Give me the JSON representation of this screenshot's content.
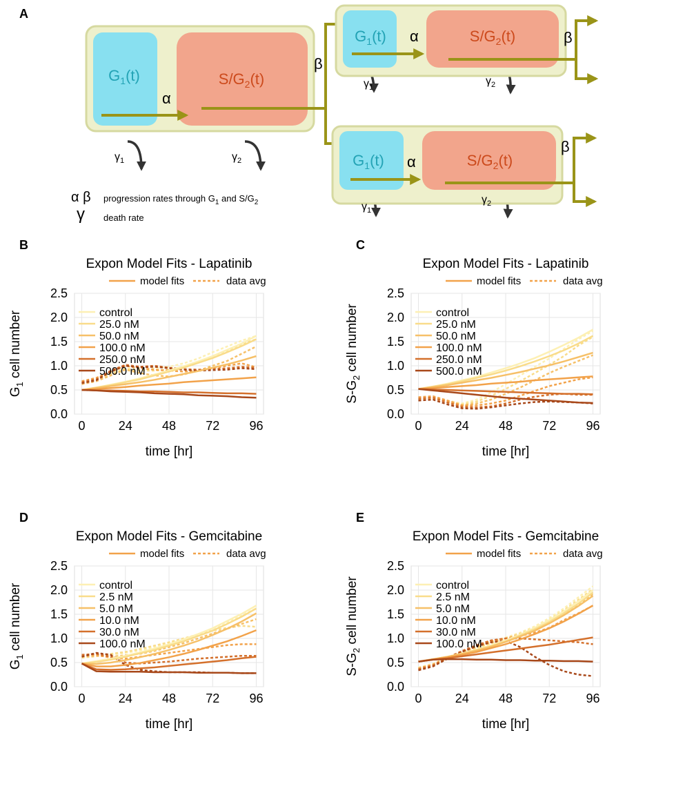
{
  "diagram": {
    "panel": "A",
    "g1": {
      "main": "G",
      "sub": "1",
      "tail": "(t)"
    },
    "sg2": {
      "main": "S/G",
      "sub": "2",
      "tail": "(t)"
    },
    "alpha": "α",
    "beta": "β",
    "gamma1": {
      "main": "γ",
      "sub": "1"
    },
    "gamma2": {
      "main": "γ",
      "sub": "2"
    },
    "legend": {
      "rates_symbols": "α β",
      "rates_text": {
        "main": "progression rates through G",
        "sub": "1",
        "mid": " and S/G",
        "sub2": "2"
      },
      "death_symbol": "γ",
      "death_text": "death rate"
    }
  },
  "chart_data": [
    {
      "type": "line",
      "panel": "B",
      "title": "Expon Model Fits - Lapatinib",
      "style_legend": [
        "model fits",
        "data avg"
      ],
      "x_label": "time [hr]",
      "y_label": {
        "main": "G",
        "sub": "1",
        "tail": " cell number"
      },
      "x": [
        0,
        8,
        16,
        24,
        32,
        40,
        48,
        56,
        64,
        72,
        80,
        88,
        96
      ],
      "xlim": [
        -4,
        100
      ],
      "xticks": [
        0,
        24,
        48,
        72,
        96
      ],
      "ylim": [
        0,
        2.5
      ],
      "yticks": [
        {
          "value": 0,
          "label": "0.0"
        },
        0.5,
        {
          "value": 1,
          "label": "1.0"
        },
        1.5,
        {
          "value": 2,
          "label": "2.0"
        },
        2.5
      ],
      "grid": true,
      "series": [
        {
          "name": "control",
          "color": "#fdf0b4",
          "fit": [
            0.5,
            0.55,
            0.61,
            0.67,
            0.74,
            0.82,
            0.9,
            0.99,
            1.09,
            1.2,
            1.33,
            1.46,
            1.62
          ],
          "data": [
            0.65,
            0.72,
            0.85,
            0.95,
            0.92,
            0.95,
            0.98,
            1.05,
            1.15,
            1.28,
            1.4,
            1.52,
            1.62
          ]
        },
        {
          "name": "25.0 nM",
          "color": "#f9dc8a",
          "fit": [
            0.5,
            0.55,
            0.6,
            0.66,
            0.72,
            0.8,
            0.88,
            0.96,
            1.06,
            1.16,
            1.28,
            1.41,
            1.55
          ],
          "data": [
            0.63,
            0.7,
            0.82,
            0.93,
            0.9,
            0.9,
            0.92,
            0.98,
            1.08,
            1.2,
            1.32,
            1.45,
            1.55
          ]
        },
        {
          "name": "50.0 nM",
          "color": "#f6c068",
          "fit": [
            0.5,
            0.54,
            0.58,
            0.62,
            0.66,
            0.71,
            0.77,
            0.83,
            0.89,
            0.96,
            1.03,
            1.11,
            1.2
          ],
          "data": [
            0.62,
            0.68,
            0.8,
            0.92,
            0.85,
            0.8,
            0.78,
            0.82,
            0.9,
            1.0,
            1.1,
            1.25,
            1.4
          ]
        },
        {
          "name": "100.0 nM",
          "color": "#f2a24a",
          "fit": [
            0.5,
            0.52,
            0.54,
            0.56,
            0.59,
            0.61,
            0.63,
            0.66,
            0.68,
            0.7,
            0.72,
            0.74,
            0.76
          ],
          "data": [
            0.68,
            0.75,
            0.88,
            1.0,
            0.95,
            0.92,
            0.9,
            0.88,
            0.9,
            0.95,
            1.0,
            1.05,
            0.97
          ]
        },
        {
          "name": "250.0 nM",
          "color": "#d4702c",
          "fit": [
            0.5,
            0.49,
            0.49,
            0.48,
            0.47,
            0.47,
            0.46,
            0.45,
            0.45,
            0.44,
            0.43,
            0.43,
            0.42
          ],
          "data": [
            0.66,
            0.72,
            0.9,
            1.02,
            0.98,
            1.0,
            0.96,
            0.93,
            0.92,
            0.93,
            0.95,
            0.98,
            0.96
          ]
        },
        {
          "name": "500.0 nM",
          "color": "#a8481a",
          "fit": [
            0.5,
            0.49,
            0.47,
            0.46,
            0.45,
            0.43,
            0.42,
            0.41,
            0.39,
            0.38,
            0.37,
            0.35,
            0.34
          ],
          "data": [
            0.64,
            0.7,
            0.88,
            1.0,
            0.97,
            0.98,
            0.95,
            0.92,
            0.9,
            0.91,
            0.92,
            0.95,
            0.93
          ]
        }
      ]
    },
    {
      "type": "line",
      "panel": "C",
      "title": "Expon Model Fits - Lapatinib",
      "style_legend": [
        "model fits",
        "data avg"
      ],
      "x_label": "time [hr]",
      "y_label": {
        "main": "S-G",
        "sub": "2",
        "tail": " cell number"
      },
      "x": [
        0,
        8,
        16,
        24,
        32,
        40,
        48,
        56,
        64,
        72,
        80,
        88,
        96
      ],
      "xlim": [
        -4,
        100
      ],
      "xticks": [
        0,
        24,
        48,
        72,
        96
      ],
      "ylim": [
        0,
        2.5
      ],
      "yticks": [
        {
          "value": 0,
          "label": "0.0"
        },
        0.5,
        {
          "value": 1,
          "label": "1.0"
        },
        1.5,
        {
          "value": 2,
          "label": "2.0"
        },
        2.5
      ],
      "grid": true,
      "series": [
        {
          "name": "control",
          "color": "#fdf0b4",
          "fit": [
            0.52,
            0.57,
            0.63,
            0.7,
            0.77,
            0.86,
            0.95,
            1.05,
            1.16,
            1.29,
            1.43,
            1.58,
            1.75
          ],
          "data": [
            0.33,
            0.35,
            0.28,
            0.22,
            0.3,
            0.45,
            0.62,
            0.8,
            0.98,
            1.15,
            1.35,
            1.55,
            1.72
          ]
        },
        {
          "name": "25.0 nM",
          "color": "#f9dc8a",
          "fit": [
            0.52,
            0.57,
            0.62,
            0.68,
            0.75,
            0.82,
            0.9,
            0.99,
            1.09,
            1.2,
            1.32,
            1.46,
            1.62
          ],
          "data": [
            0.32,
            0.34,
            0.27,
            0.2,
            0.26,
            0.38,
            0.52,
            0.68,
            0.85,
            1.02,
            1.2,
            1.42,
            1.6
          ]
        },
        {
          "name": "50.0 nM",
          "color": "#f6c068",
          "fit": [
            0.52,
            0.56,
            0.6,
            0.65,
            0.7,
            0.75,
            0.81,
            0.87,
            0.94,
            1.01,
            1.09,
            1.18,
            1.27
          ],
          "data": [
            0.3,
            0.33,
            0.25,
            0.18,
            0.22,
            0.3,
            0.42,
            0.55,
            0.7,
            0.85,
            0.98,
            1.1,
            1.22
          ]
        },
        {
          "name": "100.0 nM",
          "color": "#f2a24a",
          "fit": [
            0.52,
            0.54,
            0.56,
            0.58,
            0.6,
            0.63,
            0.65,
            0.67,
            0.7,
            0.72,
            0.74,
            0.76,
            0.78
          ],
          "data": [
            0.35,
            0.37,
            0.28,
            0.18,
            0.18,
            0.22,
            0.28,
            0.38,
            0.48,
            0.58,
            0.65,
            0.72,
            0.76
          ]
        },
        {
          "name": "250.0 nM",
          "color": "#d4702c",
          "fit": [
            0.52,
            0.51,
            0.5,
            0.49,
            0.48,
            0.47,
            0.46,
            0.45,
            0.44,
            0.43,
            0.42,
            0.42,
            0.41
          ],
          "data": [
            0.32,
            0.34,
            0.24,
            0.15,
            0.14,
            0.16,
            0.22,
            0.3,
            0.36,
            0.4,
            0.42,
            0.4,
            0.4
          ]
        },
        {
          "name": "500.0 nM",
          "color": "#a8481a",
          "fit": [
            0.52,
            0.49,
            0.46,
            0.43,
            0.4,
            0.37,
            0.34,
            0.32,
            0.3,
            0.28,
            0.26,
            0.24,
            0.23
          ],
          "data": [
            0.28,
            0.3,
            0.2,
            0.12,
            0.11,
            0.14,
            0.18,
            0.22,
            0.25,
            0.26,
            0.25,
            0.24,
            0.22
          ]
        }
      ]
    },
    {
      "type": "line",
      "panel": "D",
      "title": "Expon Model Fits - Gemcitabine",
      "style_legend": [
        "model fits",
        "data avg"
      ],
      "x_label": "time [hr]",
      "y_label": {
        "main": "G",
        "sub": "1",
        "tail": " cell number"
      },
      "x": [
        0,
        8,
        16,
        24,
        32,
        40,
        48,
        56,
        64,
        72,
        80,
        88,
        96
      ],
      "xlim": [
        -4,
        100
      ],
      "xticks": [
        0,
        24,
        48,
        72,
        96
      ],
      "ylim": [
        0,
        2.5
      ],
      "yticks": [
        {
          "value": 0,
          "label": "0.0"
        },
        0.5,
        {
          "value": 1,
          "label": "1.0"
        },
        1.5,
        {
          "value": 2,
          "label": "2.0"
        },
        2.5
      ],
      "grid": true,
      "series": [
        {
          "name": "control",
          "color": "#fdf0b4",
          "fit": [
            0.48,
            0.53,
            0.58,
            0.64,
            0.71,
            0.79,
            0.88,
            0.98,
            1.09,
            1.21,
            1.36,
            1.51,
            1.68
          ],
          "data": [
            0.63,
            0.65,
            0.66,
            0.7,
            0.75,
            0.82,
            0.9,
            0.98,
            1.08,
            1.2,
            1.34,
            1.48,
            1.62
          ]
        },
        {
          "name": "2.5 nM",
          "color": "#f9dc8a",
          "fit": [
            0.48,
            0.51,
            0.56,
            0.62,
            0.69,
            0.76,
            0.85,
            0.94,
            1.05,
            1.16,
            1.3,
            1.45,
            1.62
          ],
          "data": [
            0.6,
            0.63,
            0.68,
            0.72,
            0.78,
            0.85,
            0.92,
            1.0,
            1.08,
            1.16,
            1.22,
            1.26,
            1.24
          ]
        },
        {
          "name": "5.0 nM",
          "color": "#f6c068",
          "fit": [
            0.48,
            0.47,
            0.5,
            0.55,
            0.61,
            0.68,
            0.76,
            0.85,
            0.95,
            1.07,
            1.2,
            1.35,
            1.52
          ],
          "data": [
            0.62,
            0.64,
            0.62,
            0.65,
            0.68,
            0.74,
            0.82,
            0.9,
            1.0,
            1.1,
            1.2,
            1.3,
            1.4
          ]
        },
        {
          "name": "10.0 nM",
          "color": "#f2a24a",
          "fit": [
            0.48,
            0.42,
            0.42,
            0.45,
            0.49,
            0.55,
            0.61,
            0.68,
            0.76,
            0.85,
            0.94,
            1.05,
            1.17
          ],
          "data": [
            0.64,
            0.66,
            0.6,
            0.58,
            0.62,
            0.66,
            0.7,
            0.74,
            0.78,
            0.82,
            0.86,
            0.88,
            0.88
          ]
        },
        {
          "name": "30.0 nM",
          "color": "#d4702c",
          "fit": [
            0.48,
            0.36,
            0.35,
            0.36,
            0.38,
            0.4,
            0.43,
            0.46,
            0.49,
            0.52,
            0.55,
            0.59,
            0.62
          ],
          "data": [
            0.66,
            0.68,
            0.62,
            0.5,
            0.48,
            0.5,
            0.52,
            0.55,
            0.58,
            0.6,
            0.62,
            0.64,
            0.64
          ]
        },
        {
          "name": "100.0 nM",
          "color": "#a8481a",
          "fit": [
            0.48,
            0.32,
            0.31,
            0.31,
            0.31,
            0.3,
            0.3,
            0.3,
            0.29,
            0.29,
            0.29,
            0.28,
            0.28
          ],
          "data": [
            0.62,
            0.7,
            0.66,
            0.45,
            0.35,
            0.32,
            0.3,
            0.3,
            0.3,
            0.29,
            0.29,
            0.28,
            0.28
          ]
        }
      ]
    },
    {
      "type": "line",
      "panel": "E",
      "title": "Expon Model Fits - Gemcitabine",
      "style_legend": [
        "model fits",
        "data avg"
      ],
      "x_label": "time [hr]",
      "y_label": {
        "main": "S-G",
        "sub": "2",
        "tail": " cell number"
      },
      "x": [
        0,
        8,
        16,
        24,
        32,
        40,
        48,
        56,
        64,
        72,
        80,
        88,
        96
      ],
      "xlim": [
        -4,
        100
      ],
      "xticks": [
        0,
        24,
        48,
        72,
        96
      ],
      "ylim": [
        0,
        2.5
      ],
      "yticks": [
        {
          "value": 0,
          "label": "0.0"
        },
        0.5,
        {
          "value": 1,
          "label": "1.0"
        },
        1.5,
        {
          "value": 2,
          "label": "2.0"
        },
        2.5
      ],
      "grid": true,
      "series": [
        {
          "name": "control",
          "color": "#fdf0b4",
          "fit": [
            0.52,
            0.57,
            0.62,
            0.69,
            0.77,
            0.86,
            0.96,
            1.08,
            1.22,
            1.38,
            1.56,
            1.77,
            2.0
          ],
          "data": [
            0.4,
            0.48,
            0.6,
            0.72,
            0.82,
            0.92,
            1.02,
            1.12,
            1.25,
            1.42,
            1.62,
            1.85,
            2.08
          ]
        },
        {
          "name": "2.5 nM",
          "color": "#f9dc8a",
          "fit": [
            0.52,
            0.57,
            0.62,
            0.68,
            0.76,
            0.84,
            0.94,
            1.06,
            1.19,
            1.34,
            1.52,
            1.72,
            1.95
          ],
          "data": [
            0.38,
            0.46,
            0.58,
            0.7,
            0.8,
            0.9,
            1.0,
            1.1,
            1.22,
            1.38,
            1.58,
            1.8,
            2.02
          ]
        },
        {
          "name": "5.0 nM",
          "color": "#f6c068",
          "fit": [
            0.52,
            0.57,
            0.62,
            0.68,
            0.75,
            0.83,
            0.93,
            1.04,
            1.16,
            1.31,
            1.48,
            1.67,
            1.88
          ],
          "data": [
            0.37,
            0.45,
            0.58,
            0.7,
            0.82,
            0.92,
            1.0,
            1.08,
            1.18,
            1.32,
            1.5,
            1.7,
            1.92
          ]
        },
        {
          "name": "10.0 nM",
          "color": "#f2a24a",
          "fit": [
            0.52,
            0.56,
            0.61,
            0.66,
            0.72,
            0.8,
            0.88,
            0.98,
            1.09,
            1.21,
            1.35,
            1.51,
            1.68
          ],
          "data": [
            0.38,
            0.46,
            0.6,
            0.72,
            0.85,
            0.95,
            1.0,
            1.05,
            1.12,
            1.22,
            1.38,
            1.52,
            1.68
          ]
        },
        {
          "name": "30.0 nM",
          "color": "#d4702c",
          "fit": [
            0.52,
            0.56,
            0.59,
            0.63,
            0.67,
            0.71,
            0.75,
            0.79,
            0.83,
            0.87,
            0.92,
            0.97,
            1.02
          ],
          "data": [
            0.36,
            0.44,
            0.6,
            0.74,
            0.86,
            0.96,
            1.0,
            1.0,
            0.98,
            0.96,
            0.94,
            0.92,
            0.88
          ]
        },
        {
          "name": "100.0 nM",
          "color": "#a8481a",
          "fit": [
            0.52,
            0.56,
            0.57,
            0.57,
            0.56,
            0.56,
            0.55,
            0.55,
            0.54,
            0.54,
            0.53,
            0.53,
            0.52
          ],
          "data": [
            0.34,
            0.42,
            0.58,
            0.72,
            0.84,
            0.92,
            0.95,
            0.82,
            0.62,
            0.45,
            0.32,
            0.25,
            0.22
          ]
        }
      ]
    }
  ]
}
